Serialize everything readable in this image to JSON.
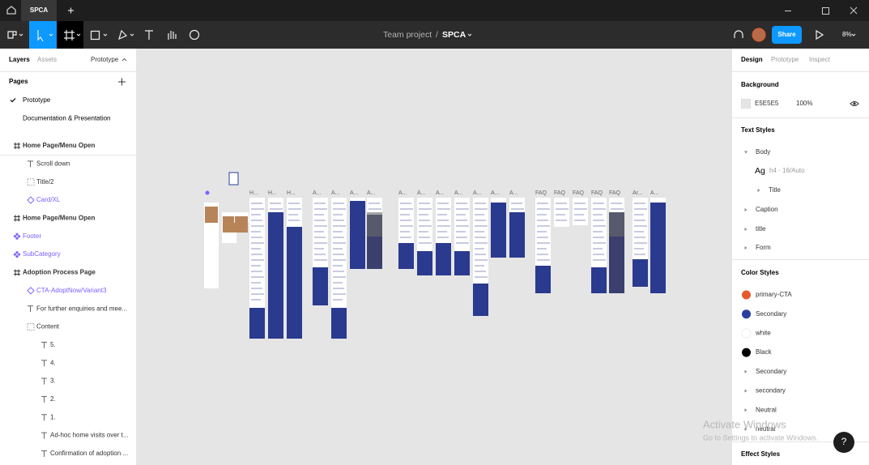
{
  "tab_bar": {
    "file_tab": "SPCA"
  },
  "toolbar": {
    "project": "Team project",
    "separator": "/",
    "file": "SPCA",
    "share": "Share",
    "zoom": "8%"
  },
  "left_panel": {
    "tabs": [
      "Layers",
      "Assets",
      "Prototype"
    ],
    "pages_title": "Pages",
    "pages": [
      "Prototype",
      "Documentation & Presentation"
    ],
    "layers": [
      "Home Page/Menu Open",
      "Scroll down",
      "Title/2",
      "Card/XL",
      "Home Page/Menu Open",
      "Footer",
      "SubCategory",
      "Adoption Process Page",
      "CTA-AdoptNow/Variant3",
      "For further enquiries and mee...",
      "Content",
      "5.",
      "4.",
      "3.",
      "2.",
      "1.",
      "Ad-hoc home visits over t...",
      "Confirmation of adoption ..."
    ]
  },
  "canvas": {
    "frame_labels": [
      "H...",
      "H...",
      "H...",
      "A...",
      "A...",
      "A...",
      "A...",
      "A...",
      "A...",
      "A...",
      "A...",
      "A...",
      "A...",
      "A...",
      "FAQ",
      "FAQ",
      "FAQ",
      "FAQ",
      "FAQ",
      "Ar...",
      "A..."
    ]
  },
  "right_panel": {
    "tabs": [
      "Design",
      "Prototype",
      "Inspect"
    ],
    "background": {
      "title": "Background",
      "hex": "E5E5E5",
      "opacity": "100%"
    },
    "text_styles": {
      "title": "Text Styles",
      "items": [
        "Body",
        "Title",
        "Caption",
        "title",
        "Form"
      ],
      "sample": "Ag",
      "sample_spec": "h4 · 16/Auto"
    },
    "color_styles": {
      "title": "Color Styles",
      "items": [
        {
          "name": "primary-CTA",
          "color": "#e35a2b"
        },
        {
          "name": "Secondary",
          "color": "#2a3f9d"
        },
        {
          "name": "white",
          "color": "#ffffff"
        },
        {
          "name": "Black",
          "color": "#000000"
        },
        {
          "name": "Secondary"
        },
        {
          "name": "secondary"
        },
        {
          "name": "Neutral"
        },
        {
          "name": "neutral"
        }
      ]
    },
    "effect_styles": "Effect Styles"
  },
  "watermark": {
    "title": "Activate Windows",
    "subtitle": "Go to Settings to activate Windows."
  },
  "help": "?"
}
